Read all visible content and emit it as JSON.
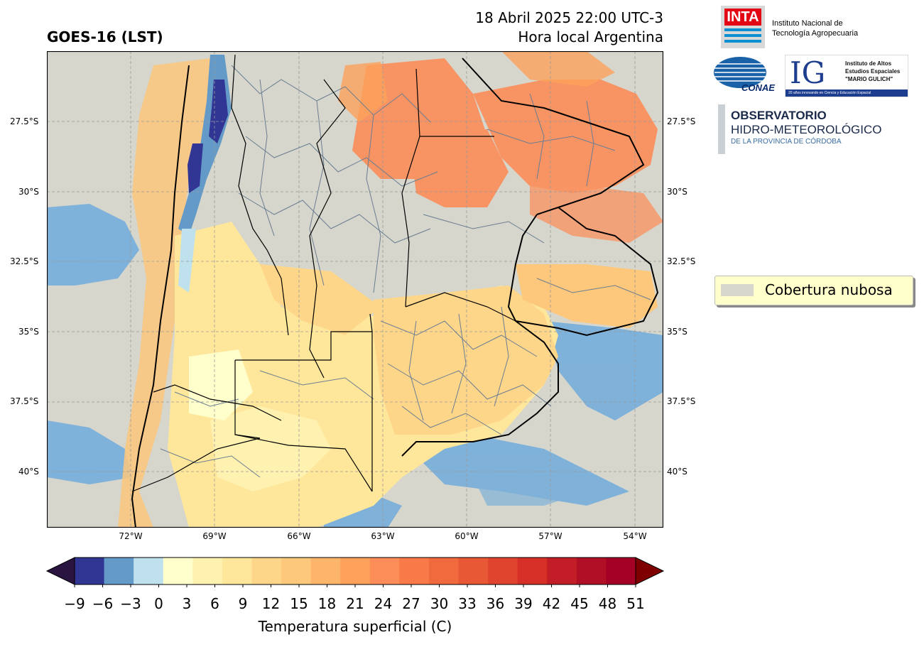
{
  "header": {
    "title": "GOES-16 (LST)",
    "date_line": "18 Abril 2025 22:00 UTC-3",
    "local_line": "Hora local Argentina"
  },
  "map": {
    "lat_ticks": [
      "27.5°S",
      "30°S",
      "32.5°S",
      "35°S",
      "37.5°S",
      "40°S"
    ],
    "lon_ticks": [
      "72°W",
      "69°W",
      "66°W",
      "63°W",
      "60°W",
      "57°W",
      "54°W"
    ],
    "gridlines": true,
    "cloud_color": "#d6d6cc",
    "ocean_cloud_free_color": "#76aedb"
  },
  "legend": {
    "label": "Cobertura nubosa",
    "swatch_color": "#d6d6cc"
  },
  "colorbar": {
    "label": "Temperatura superficial (C)",
    "ticks": [
      "−9",
      "−6",
      "−3",
      "0",
      "3",
      "6",
      "9",
      "12",
      "15",
      "18",
      "21",
      "24",
      "27",
      "30",
      "33",
      "36",
      "39",
      "42",
      "45",
      "48",
      "51"
    ],
    "colors": [
      "#313695",
      "#649ac7",
      "#bfe1ee",
      "#ffffcc",
      "#fff1b0",
      "#fee79a",
      "#fed68a",
      "#fdc77c",
      "#fdb56b",
      "#fda15b",
      "#fc8d59",
      "#f77a48",
      "#f16a3e",
      "#e95835",
      "#e0442e",
      "#d62f27",
      "#c31e27",
      "#b00f26",
      "#a50026"
    ],
    "under_color": "#2a1440",
    "over_color": "#7f0000"
  },
  "logos": {
    "inta_mark": "INTA",
    "inta_name_1": "Instituto Nacional de",
    "inta_name_2": "Tecnología Agropecuaria",
    "conae": "CONAE",
    "ig_mark": "IG",
    "ig_name_1": "Instituto de Altos",
    "ig_name_2": "Estudios Espaciales",
    "ig_name_3": "\"MARIO GULICH\"",
    "ig_tagline": "20 años innovando en Ciencia y Educación Espacial",
    "obs_1": "OBSERVATORIO",
    "obs_2": "HIDRO-METEOROLÓGICO",
    "obs_3": "DE LA PROVINCIA DE CÓRDOBA"
  }
}
